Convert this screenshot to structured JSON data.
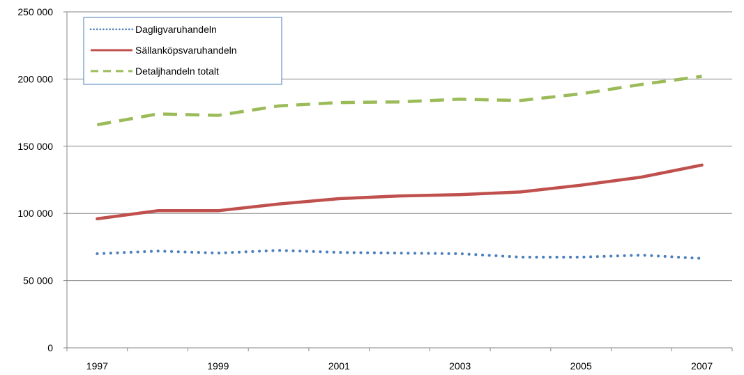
{
  "chart_data": {
    "type": "line",
    "x": [
      "1997",
      "1998",
      "1999",
      "2000",
      "2001",
      "2002",
      "2003",
      "2004",
      "2005",
      "2006",
      "2007"
    ],
    "x_tick_labels": [
      "1997",
      "1999",
      "2001",
      "2003",
      "2005",
      "2007"
    ],
    "y_tick_labels": [
      "0",
      "50 000",
      "100 000",
      "150 000",
      "200 000",
      "250 000"
    ],
    "ylim": [
      0,
      250000
    ],
    "grid": "horizontal",
    "legend_position": "top-left",
    "series": [
      {
        "name": "Dagligvaruhandeln",
        "color": "#4a7ebb",
        "style": "dotted",
        "values": [
          70000,
          72000,
          70500,
          72500,
          71000,
          70500,
          70000,
          67500,
          67500,
          69000,
          66500
        ]
      },
      {
        "name": "Sällanköpsvaruhandeln",
        "color": "#c0504d",
        "style": "solid",
        "values": [
          96000,
          102000,
          102000,
          107000,
          111000,
          113000,
          114000,
          116000,
          121000,
          127000,
          136000
        ]
      },
      {
        "name": "Detaljhandeln totalt",
        "color": "#9bbb59",
        "style": "dashed",
        "values": [
          166000,
          174000,
          173000,
          180000,
          182500,
          183000,
          185000,
          184000,
          189000,
          196000,
          202000
        ]
      }
    ]
  }
}
